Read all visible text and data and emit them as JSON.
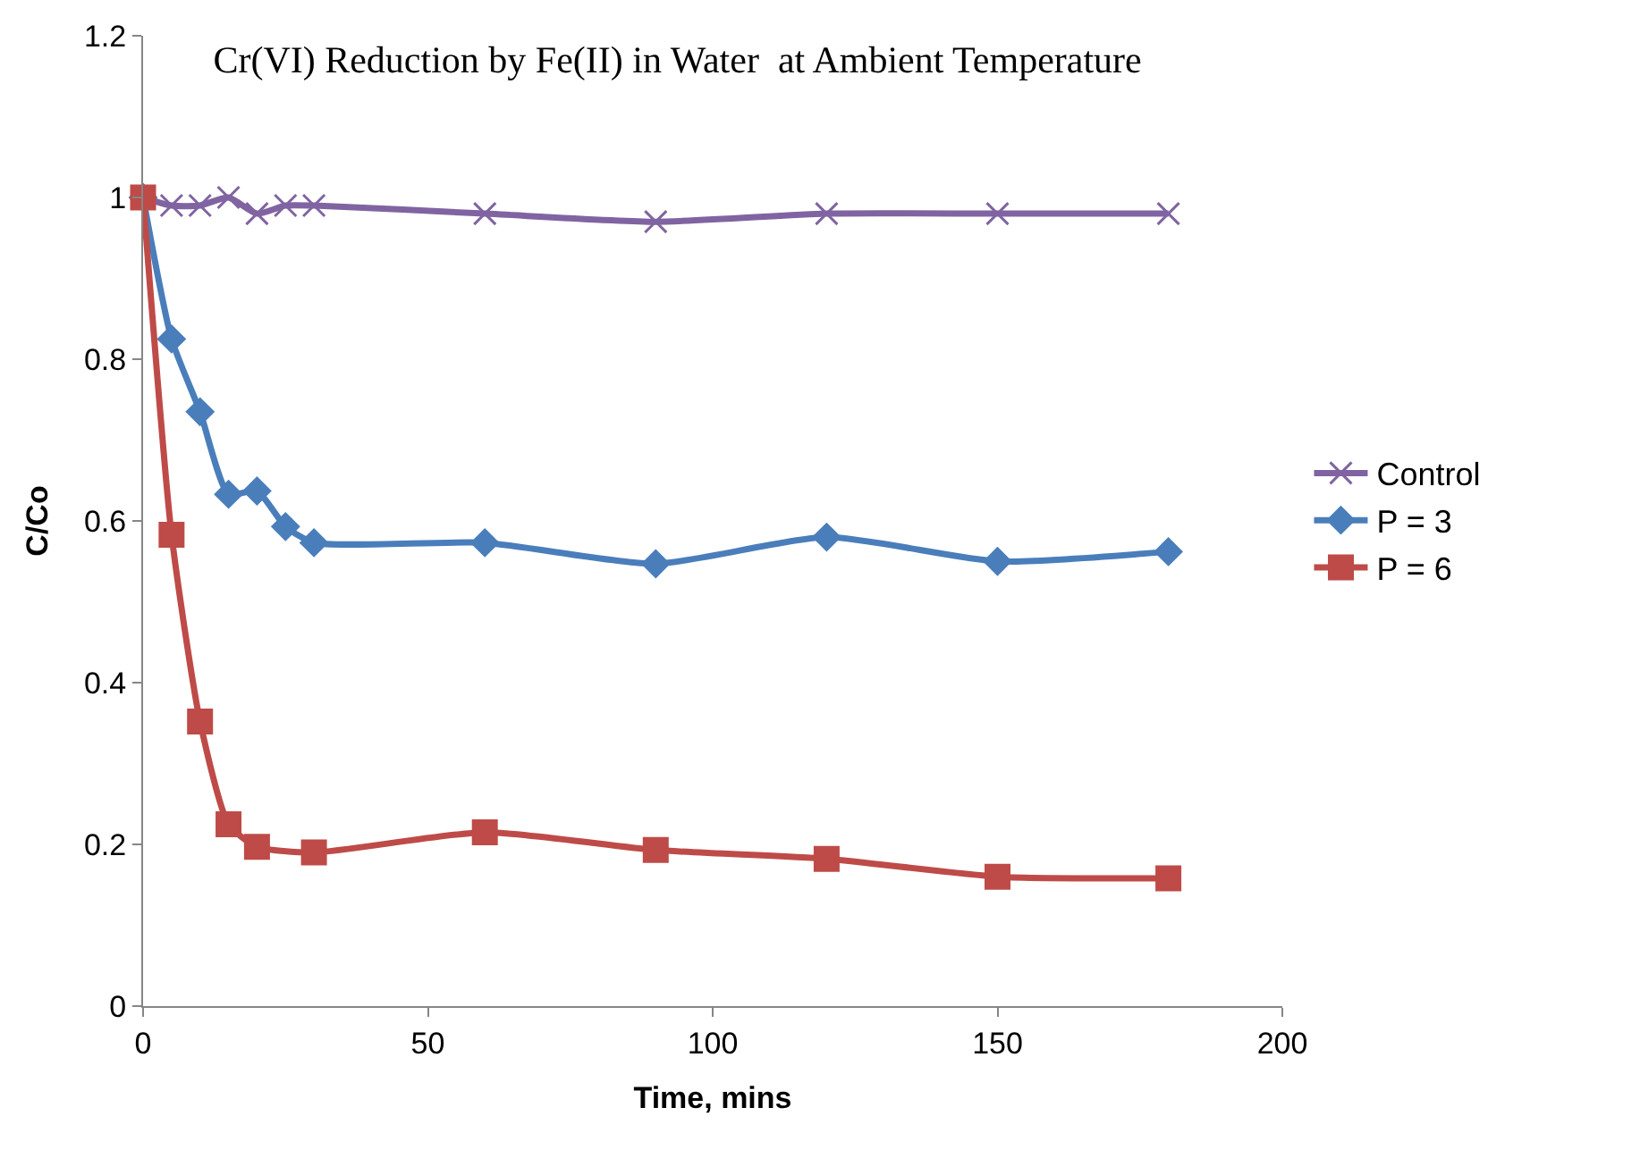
{
  "chart_data": {
    "type": "line",
    "title": "Cr(VI) Reduction by Fe(II) in Water  at Ambient Temperature",
    "xlabel": "Time, mins",
    "ylabel": "C/Co",
    "xlim": [
      0,
      200
    ],
    "xticks": [
      0,
      50,
      100,
      150,
      200
    ],
    "ylim": [
      0,
      1.2
    ],
    "yticks": [
      0,
      0.2,
      0.4,
      0.6,
      0.8,
      1,
      1.2
    ],
    "legend": "right",
    "series": [
      {
        "name": "Control",
        "color": "#8064a2",
        "marker": "cross",
        "x": [
          0,
          5,
          10,
          15,
          20,
          25,
          30,
          60,
          90,
          120,
          150,
          180
        ],
        "values": [
          1,
          0.99,
          0.99,
          1.0,
          0.98,
          0.99,
          0.99,
          0.98,
          0.97,
          0.98,
          0.98,
          0.98
        ]
      },
      {
        "name": "P = 3",
        "color": "#4a7ebb",
        "marker": "diamond",
        "x": [
          0,
          5,
          10,
          15,
          20,
          25,
          30,
          60,
          90,
          120,
          150,
          180
        ],
        "values": [
          1,
          0.825,
          0.735,
          0.633,
          0.637,
          0.593,
          0.573,
          0.573,
          0.547,
          0.58,
          0.55,
          0.562
        ]
      },
      {
        "name": "P = 6",
        "color": "#be4b48",
        "marker": "square",
        "x": [
          0,
          5,
          10,
          15,
          20,
          30,
          60,
          90,
          120,
          150,
          180
        ],
        "values": [
          1,
          0.583,
          0.352,
          0.225,
          0.197,
          0.19,
          0.215,
          0.193,
          0.182,
          0.16,
          0.158
        ]
      }
    ]
  }
}
